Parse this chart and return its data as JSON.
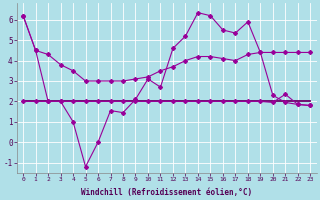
{
  "xlabel": "Windchill (Refroidissement éolien,°C)",
  "x": [
    0,
    1,
    2,
    3,
    4,
    5,
    6,
    7,
    8,
    9,
    10,
    11,
    12,
    13,
    14,
    15,
    16,
    17,
    18,
    19,
    20,
    21,
    22,
    23
  ],
  "temp_y": [
    6.2,
    4.5,
    4.3,
    3.8,
    3.5,
    3.0,
    3.0,
    3.0,
    3.0,
    3.1,
    3.2,
    3.5,
    3.7,
    4.0,
    4.2,
    4.2,
    4.1,
    4.0,
    4.3,
    4.4,
    4.4,
    4.4,
    4.4,
    4.4
  ],
  "wc_y": [
    6.2,
    4.5,
    2.0,
    2.0,
    1.0,
    -1.2,
    0.0,
    1.55,
    1.45,
    2.1,
    3.1,
    2.7,
    4.6,
    5.2,
    6.35,
    6.2,
    5.5,
    5.35,
    5.9,
    4.4,
    2.3,
    1.95,
    1.85,
    1.8
  ],
  "flat_y": [
    2.0,
    2.0,
    2.0,
    2.0,
    2.0,
    2.0,
    2.0,
    2.0,
    2.0,
    2.0,
    2.0,
    2.0,
    2.0,
    2.0,
    2.0,
    2.0,
    2.0,
    2.0,
    2.0,
    2.0,
    1.95,
    2.35,
    1.85,
    1.8
  ],
  "horiz_y": [
    2.0,
    2.0,
    2.0,
    2.0,
    2.0,
    2.0,
    2.0,
    2.0,
    2.0,
    2.0,
    2.0,
    2.0,
    2.0,
    2.0,
    2.0,
    2.0,
    2.0,
    2.0,
    2.0,
    2.0,
    2.0,
    2.0,
    2.0,
    2.0
  ],
  "line_color": "#990099",
  "horiz_color": "#660066",
  "bg_color": "#b0e0e8",
  "grid_color": "#ffffff",
  "ylim": [
    -1.5,
    6.8
  ],
  "xlim": [
    -0.5,
    23.5
  ],
  "yticks": [
    -1,
    0,
    1,
    2,
    3,
    4,
    5,
    6
  ]
}
